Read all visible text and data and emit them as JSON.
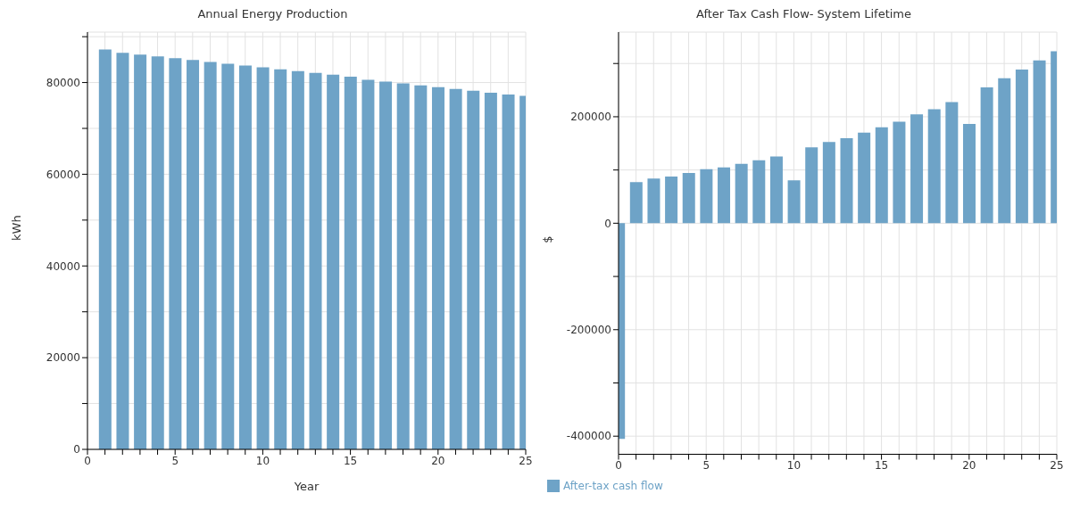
{
  "chart_data": [
    {
      "type": "bar",
      "title": "Annual Energy Production",
      "xlabel": "Year",
      "ylabel": "kWh",
      "x": [
        1,
        2,
        3,
        4,
        5,
        6,
        7,
        8,
        9,
        10,
        11,
        12,
        13,
        14,
        15,
        16,
        17,
        18,
        19,
        20,
        21,
        22,
        23,
        24,
        25
      ],
      "series": [
        {
          "color": "#6ea3c7",
          "values": [
            87200,
            86500,
            86100,
            85700,
            85300,
            84900,
            84500,
            84100,
            83700,
            83300,
            82900,
            82500,
            82100,
            81700,
            81300,
            80600,
            80200,
            79800,
            79400,
            79000,
            78600,
            78200,
            77800,
            77400,
            77100
          ]
        }
      ],
      "xlim": [
        0,
        25
      ],
      "xticks": [
        0,
        {
          "value": 1,
          "label": null
        },
        {
          "value": 2,
          "label": null
        },
        {
          "value": 3,
          "label": null
        },
        {
          "value": 4,
          "label": null
        },
        5,
        {
          "value": 6,
          "label": null
        },
        {
          "value": 7,
          "label": null
        },
        {
          "value": 8,
          "label": null
        },
        {
          "value": 9,
          "label": null
        },
        10,
        {
          "value": 11,
          "label": null
        },
        {
          "value": 12,
          "label": null
        },
        {
          "value": 13,
          "label": null
        },
        {
          "value": 14,
          "label": null
        },
        15,
        {
          "value": 16,
          "label": null
        },
        {
          "value": 17,
          "label": null
        },
        {
          "value": 18,
          "label": null
        },
        {
          "value": 19,
          "label": null
        },
        20,
        {
          "value": 21,
          "label": null
        },
        {
          "value": 22,
          "label": null
        },
        {
          "value": 23,
          "label": null
        },
        {
          "value": 24,
          "label": null
        },
        25
      ],
      "ylim": [
        0,
        91000
      ],
      "yticks": [
        0,
        {
          "value": 10000,
          "label": null
        },
        20000,
        {
          "value": 30000,
          "label": null
        },
        40000,
        {
          "value": 50000,
          "label": null
        },
        60000,
        {
          "value": 70000,
          "label": null
        },
        80000,
        {
          "value": 90000,
          "label": null
        }
      ],
      "grid": true,
      "legend": false
    },
    {
      "type": "bar",
      "title": "After Tax Cash Flow- System Lifetime",
      "ylabel": "$",
      "x": [
        0,
        1,
        2,
        3,
        4,
        5,
        6,
        7,
        8,
        9,
        10,
        11,
        12,
        13,
        14,
        15,
        16,
        17,
        18,
        19,
        20,
        21,
        22,
        23,
        24,
        25
      ],
      "series": [
        {
          "name": "After-tax cash flow",
          "color": "#6ea3c7",
          "values": [
            -405000,
            77200,
            84100,
            87500,
            94300,
            101300,
            104700,
            111600,
            118400,
            125400,
            80700,
            142500,
            152700,
            159700,
            170000,
            180200,
            190600,
            204300,
            214000,
            227700,
            186500,
            255000,
            272400,
            288800,
            306000,
            323100
          ]
        }
      ],
      "xlim": [
        0,
        25
      ],
      "xticks": [
        0,
        {
          "value": 1,
          "label": null
        },
        {
          "value": 2,
          "label": null
        },
        {
          "value": 3,
          "label": null
        },
        {
          "value": 4,
          "label": null
        },
        5,
        {
          "value": 6,
          "label": null
        },
        {
          "value": 7,
          "label": null
        },
        {
          "value": 8,
          "label": null
        },
        {
          "value": 9,
          "label": null
        },
        10,
        {
          "value": 11,
          "label": null
        },
        {
          "value": 12,
          "label": null
        },
        {
          "value": 13,
          "label": null
        },
        {
          "value": 14,
          "label": null
        },
        15,
        {
          "value": 16,
          "label": null
        },
        {
          "value": 17,
          "label": null
        },
        {
          "value": 18,
          "label": null
        },
        {
          "value": 19,
          "label": null
        },
        20,
        {
          "value": 21,
          "label": null
        },
        {
          "value": 22,
          "label": null
        },
        {
          "value": 23,
          "label": null
        },
        {
          "value": 24,
          "label": null
        },
        25
      ],
      "ylim": [
        -434000,
        359000
      ],
      "yticks": [
        -400000,
        {
          "value": -300000,
          "label": null
        },
        -200000,
        {
          "value": -100000,
          "label": null
        },
        0,
        {
          "value": 100000,
          "label": null
        },
        200000,
        {
          "value": 300000,
          "label": null
        }
      ],
      "grid": true,
      "legend": "bottom left"
    }
  ]
}
